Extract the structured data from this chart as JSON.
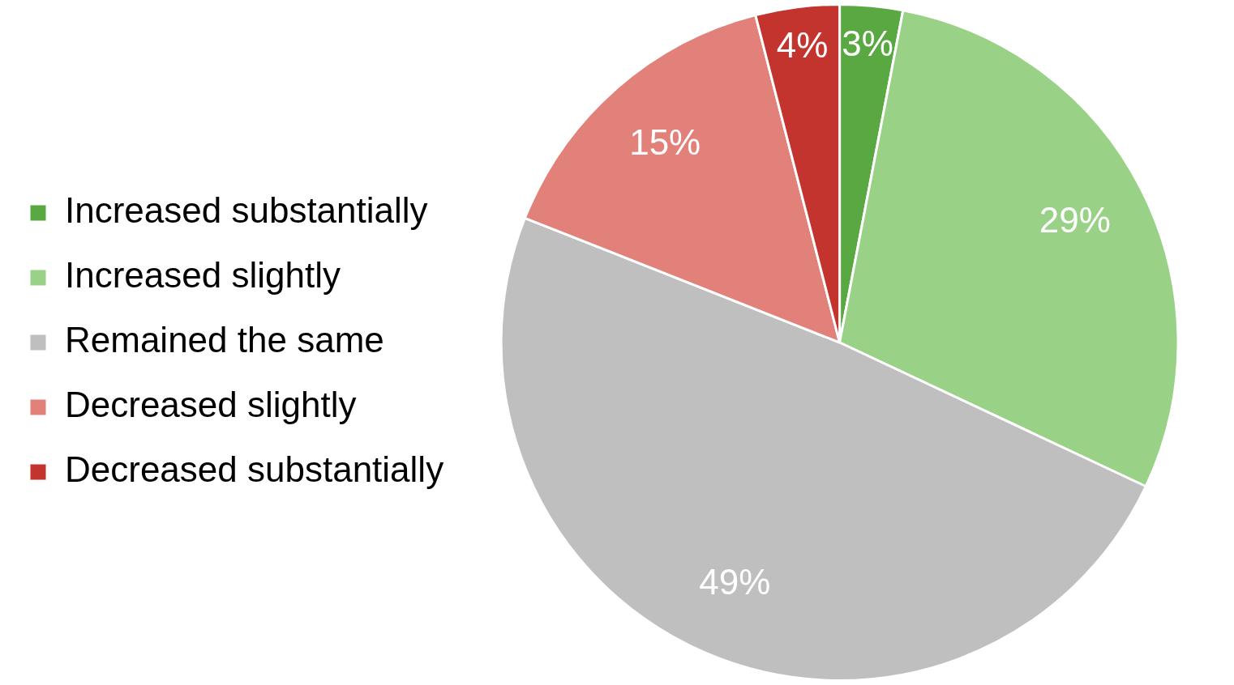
{
  "chart_data": {
    "type": "pie",
    "categories": [
      "Increased substantially",
      "Increased slightly",
      "Remained the same",
      "Decreased slightly",
      "Decreased substantially"
    ],
    "values": [
      3,
      29,
      49,
      15,
      4
    ],
    "colors": [
      "#5aa842",
      "#99d286",
      "#bfbfbf",
      "#e2807a",
      "#c2342d"
    ],
    "value_labels": [
      "3%",
      "29%",
      "49%",
      "15%",
      "4%"
    ],
    "legend": "left"
  }
}
